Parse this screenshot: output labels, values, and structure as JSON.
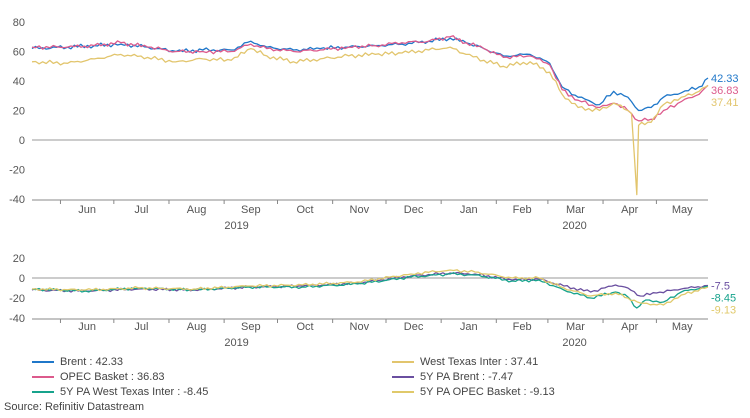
{
  "colors": {
    "brent": "#1f77c9",
    "wti": "#e2c56d",
    "opec": "#dc5a8c",
    "pa_brent": "#6a4fa0",
    "pa_wti": "#17a38c",
    "pa_opec": "#e0c96a",
    "axis": "#888888",
    "zero_line": "#999999"
  },
  "chart_data": [
    {
      "type": "line",
      "ylim": [
        -40,
        80
      ],
      "yticks": [
        -40,
        -20,
        0,
        20,
        40,
        60,
        80
      ],
      "x_range": [
        "2019-05-16",
        "2020-05-30"
      ],
      "month_labels": [
        "Jun",
        "Jul",
        "Aug",
        "Sep",
        "Oct",
        "Nov",
        "Dec",
        "Jan",
        "Feb",
        "Mar",
        "Apr",
        "May"
      ],
      "year_labels": [
        "2019",
        "2020"
      ],
      "grid": false,
      "series": [
        {
          "name": "Brent",
          "end_label": "42.33",
          "color_key": "brent",
          "points": [
            [
              "2019-05-16",
              62
            ],
            [
              "2019-06-05",
              63
            ],
            [
              "2019-06-20",
              64
            ],
            [
              "2019-07-05",
              65
            ],
            [
              "2019-07-20",
              63
            ],
            [
              "2019-08-05",
              60
            ],
            [
              "2019-08-20",
              61
            ],
            [
              "2019-09-05",
              61
            ],
            [
              "2019-09-16",
              67
            ],
            [
              "2019-09-25",
              63
            ],
            [
              "2019-10-10",
              61
            ],
            [
              "2019-10-25",
              62
            ],
            [
              "2019-11-10",
              63
            ],
            [
              "2019-11-25",
              64
            ],
            [
              "2019-12-10",
              65
            ],
            [
              "2019-12-25",
              67
            ],
            [
              "2020-01-06",
              69
            ],
            [
              "2020-01-15",
              66
            ],
            [
              "2020-01-25",
              62
            ],
            [
              "2020-02-05",
              57
            ],
            [
              "2020-02-20",
              58
            ],
            [
              "2020-03-02",
              52
            ],
            [
              "2020-03-09",
              36
            ],
            [
              "2020-03-18",
              29
            ],
            [
              "2020-03-30",
              24
            ],
            [
              "2020-04-07",
              33
            ],
            [
              "2020-04-15",
              29
            ],
            [
              "2020-04-21",
              20
            ],
            [
              "2020-04-28",
              22
            ],
            [
              "2020-05-05",
              29
            ],
            [
              "2020-05-15",
              32
            ],
            [
              "2020-05-25",
              36
            ],
            [
              "2020-05-30",
              42
            ]
          ]
        },
        {
          "name": "OPEC Basket",
          "end_label": "36.83",
          "color_key": "opec",
          "points": [
            [
              "2019-05-16",
              63
            ],
            [
              "2019-06-05",
              63
            ],
            [
              "2019-06-20",
              64
            ],
            [
              "2019-07-05",
              66
            ],
            [
              "2019-07-20",
              63
            ],
            [
              "2019-08-05",
              60
            ],
            [
              "2019-08-20",
              60
            ],
            [
              "2019-09-05",
              60
            ],
            [
              "2019-09-16",
              65
            ],
            [
              "2019-09-25",
              62
            ],
            [
              "2019-10-10",
              60
            ],
            [
              "2019-10-25",
              61
            ],
            [
              "2019-11-10",
              63
            ],
            [
              "2019-11-25",
              64
            ],
            [
              "2019-12-10",
              66
            ],
            [
              "2019-12-25",
              67
            ],
            [
              "2020-01-06",
              70
            ],
            [
              "2020-01-15",
              66
            ],
            [
              "2020-01-25",
              62
            ],
            [
              "2020-02-05",
              56
            ],
            [
              "2020-02-20",
              57
            ],
            [
              "2020-03-02",
              51
            ],
            [
              "2020-03-09",
              34
            ],
            [
              "2020-03-18",
              27
            ],
            [
              "2020-03-30",
              22
            ],
            [
              "2020-04-07",
              25
            ],
            [
              "2020-04-15",
              20
            ],
            [
              "2020-04-21",
              13
            ],
            [
              "2020-04-28",
              14
            ],
            [
              "2020-05-05",
              20
            ],
            [
              "2020-05-15",
              26
            ],
            [
              "2020-05-25",
              31
            ],
            [
              "2020-05-30",
              37
            ]
          ]
        },
        {
          "name": "West Texas Inter",
          "end_label": "37.41",
          "color_key": "wti",
          "points": [
            [
              "2019-05-16",
              53
            ],
            [
              "2019-06-05",
              52
            ],
            [
              "2019-06-20",
              55
            ],
            [
              "2019-07-05",
              58
            ],
            [
              "2019-07-20",
              56
            ],
            [
              "2019-08-05",
              53
            ],
            [
              "2019-08-20",
              55
            ],
            [
              "2019-09-05",
              54
            ],
            [
              "2019-09-16",
              62
            ],
            [
              "2019-09-25",
              57
            ],
            [
              "2019-10-10",
              53
            ],
            [
              "2019-10-25",
              55
            ],
            [
              "2019-11-10",
              57
            ],
            [
              "2019-11-25",
              58
            ],
            [
              "2019-12-10",
              59
            ],
            [
              "2019-12-25",
              61
            ],
            [
              "2020-01-06",
              63
            ],
            [
              "2020-01-15",
              58
            ],
            [
              "2020-01-25",
              54
            ],
            [
              "2020-02-05",
              50
            ],
            [
              "2020-02-20",
              53
            ],
            [
              "2020-03-02",
              46
            ],
            [
              "2020-03-09",
              31
            ],
            [
              "2020-03-18",
              22
            ],
            [
              "2020-03-30",
              20
            ],
            [
              "2020-04-07",
              25
            ],
            [
              "2020-04-15",
              20
            ],
            [
              "2020-04-17",
              18
            ],
            [
              "2020-04-20",
              -37
            ],
            [
              "2020-04-21",
              10
            ],
            [
              "2020-04-28",
              12
            ],
            [
              "2020-05-05",
              24
            ],
            [
              "2020-05-15",
              29
            ],
            [
              "2020-05-25",
              33
            ],
            [
              "2020-05-30",
              37
            ]
          ]
        }
      ]
    },
    {
      "type": "line",
      "ylim": [
        -40,
        20
      ],
      "yticks": [
        -40,
        -20,
        0,
        20
      ],
      "x_range": [
        "2019-05-16",
        "2020-05-30"
      ],
      "month_labels": [
        "Jun",
        "Jul",
        "Aug",
        "Sep",
        "Oct",
        "Nov",
        "Dec",
        "Jan",
        "Feb",
        "Mar",
        "Apr",
        "May"
      ],
      "year_labels": [
        "2019",
        "2020"
      ],
      "grid": false,
      "series": [
        {
          "name": "5Y PA Brent",
          "end_label": "-7.5",
          "color_key": "pa_brent",
          "points": [
            [
              "2019-05-16",
              -12
            ],
            [
              "2019-06-15",
              -13
            ],
            [
              "2019-07-15",
              -11
            ],
            [
              "2019-08-15",
              -12
            ],
            [
              "2019-09-15",
              -9
            ],
            [
              "2019-10-15",
              -8
            ],
            [
              "2019-11-15",
              -5
            ],
            [
              "2019-12-15",
              2
            ],
            [
              "2020-01-06",
              5
            ],
            [
              "2020-01-20",
              4
            ],
            [
              "2020-02-10",
              -2
            ],
            [
              "2020-02-25",
              -1
            ],
            [
              "2020-03-10",
              -8
            ],
            [
              "2020-03-25",
              -14
            ],
            [
              "2020-04-08",
              -7
            ],
            [
              "2020-04-15",
              -10
            ],
            [
              "2020-04-22",
              -18
            ],
            [
              "2020-05-01",
              -15
            ],
            [
              "2020-05-15",
              -11
            ],
            [
              "2020-05-30",
              -7.5
            ]
          ]
        },
        {
          "name": "5Y PA West Texas Inter",
          "end_label": "-8.45",
          "color_key": "pa_wti",
          "points": [
            [
              "2019-05-16",
              -11
            ],
            [
              "2019-06-15",
              -13
            ],
            [
              "2019-07-15",
              -10
            ],
            [
              "2019-08-15",
              -12
            ],
            [
              "2019-09-15",
              -9
            ],
            [
              "2019-10-15",
              -9
            ],
            [
              "2019-11-15",
              -6
            ],
            [
              "2019-12-15",
              1
            ],
            [
              "2020-01-06",
              4
            ],
            [
              "2020-01-20",
              3
            ],
            [
              "2020-02-10",
              -3
            ],
            [
              "2020-02-25",
              -2
            ],
            [
              "2020-03-10",
              -12
            ],
            [
              "2020-03-25",
              -20
            ],
            [
              "2020-04-08",
              -14
            ],
            [
              "2020-04-15",
              -19
            ],
            [
              "2020-04-20",
              -30
            ],
            [
              "2020-04-25",
              -22
            ],
            [
              "2020-05-05",
              -24
            ],
            [
              "2020-05-15",
              -14
            ],
            [
              "2020-05-30",
              -8.45
            ]
          ]
        },
        {
          "name": "5Y PA OPEC Basket",
          "end_label": "-9.13",
          "color_key": "pa_opec",
          "points": [
            [
              "2019-05-16",
              -11
            ],
            [
              "2019-06-15",
              -12
            ],
            [
              "2019-07-15",
              -10
            ],
            [
              "2019-08-15",
              -11
            ],
            [
              "2019-09-15",
              -8
            ],
            [
              "2019-10-15",
              -7
            ],
            [
              "2019-11-15",
              -4
            ],
            [
              "2019-12-15",
              4
            ],
            [
              "2020-01-06",
              8
            ],
            [
              "2020-01-20",
              6
            ],
            [
              "2020-02-10",
              0
            ],
            [
              "2020-02-25",
              0
            ],
            [
              "2020-03-10",
              -10
            ],
            [
              "2020-03-25",
              -18
            ],
            [
              "2020-04-08",
              -15
            ],
            [
              "2020-04-15",
              -20
            ],
            [
              "2020-04-22",
              -25
            ],
            [
              "2020-05-05",
              -27
            ],
            [
              "2020-05-15",
              -17
            ],
            [
              "2020-05-30",
              -9.13
            ]
          ]
        }
      ]
    }
  ],
  "legend": {
    "items": [
      {
        "text": "Brent : 42.33",
        "color_key": "brent"
      },
      {
        "text": "West Texas Inter : 37.41",
        "color_key": "wti"
      },
      {
        "text": "OPEC Basket : 36.83",
        "color_key": "opec"
      },
      {
        "text": "5Y PA Brent : -7.47",
        "color_key": "pa_brent"
      },
      {
        "text": "5Y PA West Texas Inter : -8.45",
        "color_key": "pa_wti"
      },
      {
        "text": "5Y PA OPEC Basket : -9.13",
        "color_key": "pa_opec"
      }
    ]
  },
  "source": "Source: Refinitiv Datastream"
}
